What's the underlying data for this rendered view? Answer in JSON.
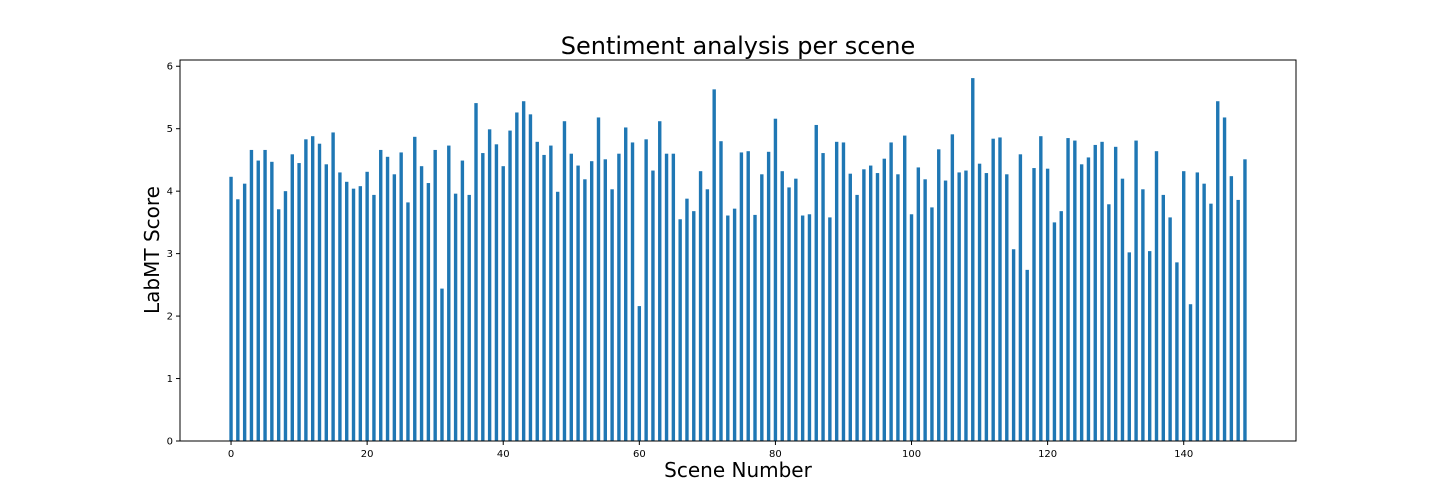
{
  "chart_data": {
    "type": "bar",
    "title": "Sentiment analysis per scene",
    "xlabel": "Scene Number",
    "ylabel": "LabMT Score",
    "xlim": [
      -7.5,
      156.5
    ],
    "ylim": [
      0,
      6.1
    ],
    "xticks": [
      0,
      20,
      40,
      60,
      80,
      100,
      120,
      140
    ],
    "yticks": [
      0,
      1,
      2,
      3,
      4,
      5,
      6
    ],
    "bar_color": "#1f77b4",
    "grid": false,
    "x": [
      0,
      1,
      2,
      3,
      4,
      5,
      6,
      7,
      8,
      9,
      10,
      11,
      12,
      13,
      14,
      15,
      16,
      17,
      18,
      19,
      20,
      21,
      22,
      23,
      24,
      25,
      26,
      27,
      28,
      29,
      30,
      31,
      32,
      33,
      34,
      35,
      36,
      37,
      38,
      39,
      40,
      41,
      42,
      43,
      44,
      45,
      46,
      47,
      48,
      49,
      50,
      51,
      52,
      53,
      54,
      55,
      56,
      57,
      58,
      59,
      60,
      61,
      62,
      63,
      64,
      65,
      66,
      67,
      68,
      69,
      70,
      71,
      72,
      73,
      74,
      75,
      76,
      77,
      78,
      79,
      80,
      81,
      82,
      83,
      84,
      85,
      86,
      87,
      88,
      89,
      90,
      91,
      92,
      93,
      94,
      95,
      96,
      97,
      98,
      99,
      100,
      101,
      102,
      103,
      104,
      105,
      106,
      107,
      108,
      109,
      110,
      111,
      112,
      113,
      114,
      115,
      116,
      117,
      118,
      119,
      120,
      121,
      122,
      123,
      124,
      125,
      126,
      127,
      128,
      129,
      130,
      131,
      132,
      133,
      134,
      135,
      136,
      137,
      138,
      139,
      140,
      141,
      142,
      143,
      144,
      145,
      146,
      147,
      148,
      149
    ],
    "values": [
      4.23,
      3.87,
      4.12,
      4.66,
      4.49,
      4.66,
      4.47,
      3.71,
      4.0,
      4.59,
      4.45,
      4.83,
      4.88,
      4.76,
      4.43,
      4.94,
      4.3,
      4.15,
      4.04,
      4.08,
      4.31,
      3.94,
      4.66,
      4.55,
      4.27,
      4.62,
      3.82,
      4.87,
      4.4,
      4.13,
      4.66,
      2.44,
      4.73,
      3.96,
      4.49,
      3.94,
      5.41,
      4.61,
      4.99,
      4.75,
      4.4,
      4.97,
      5.26,
      5.44,
      5.23,
      4.79,
      4.58,
      4.73,
      3.99,
      5.12,
      4.6,
      4.41,
      4.19,
      4.48,
      5.18,
      4.51,
      4.03,
      4.6,
      5.02,
      4.78,
      2.16,
      4.83,
      4.33,
      5.12,
      4.6,
      4.6,
      3.55,
      3.88,
      3.68,
      4.32,
      4.03,
      5.63,
      4.8,
      3.61,
      3.72,
      4.62,
      4.64,
      3.62,
      4.27,
      4.63,
      5.16,
      4.32,
      4.06,
      4.2,
      3.61,
      3.63,
      5.06,
      4.61,
      3.58,
      4.79,
      4.78,
      4.28,
      3.94,
      4.35,
      4.41,
      4.29,
      4.52,
      4.78,
      4.27,
      4.89,
      3.63,
      4.38,
      4.19,
      3.74,
      4.67,
      4.17,
      4.91,
      4.3,
      4.33,
      5.81,
      4.44,
      4.29,
      4.84,
      4.86,
      4.27,
      3.07,
      4.59,
      2.74,
      4.37,
      4.88,
      4.36,
      3.5,
      3.68,
      4.85,
      4.81,
      4.43,
      4.54,
      4.74,
      4.79,
      3.79,
      4.71,
      4.2,
      3.02,
      4.81,
      4.03,
      3.04,
      4.64,
      3.94,
      3.58,
      2.86,
      4.32,
      2.19,
      4.3,
      4.12,
      3.8,
      5.44,
      5.18,
      4.24,
      3.86,
      4.51
    ]
  }
}
